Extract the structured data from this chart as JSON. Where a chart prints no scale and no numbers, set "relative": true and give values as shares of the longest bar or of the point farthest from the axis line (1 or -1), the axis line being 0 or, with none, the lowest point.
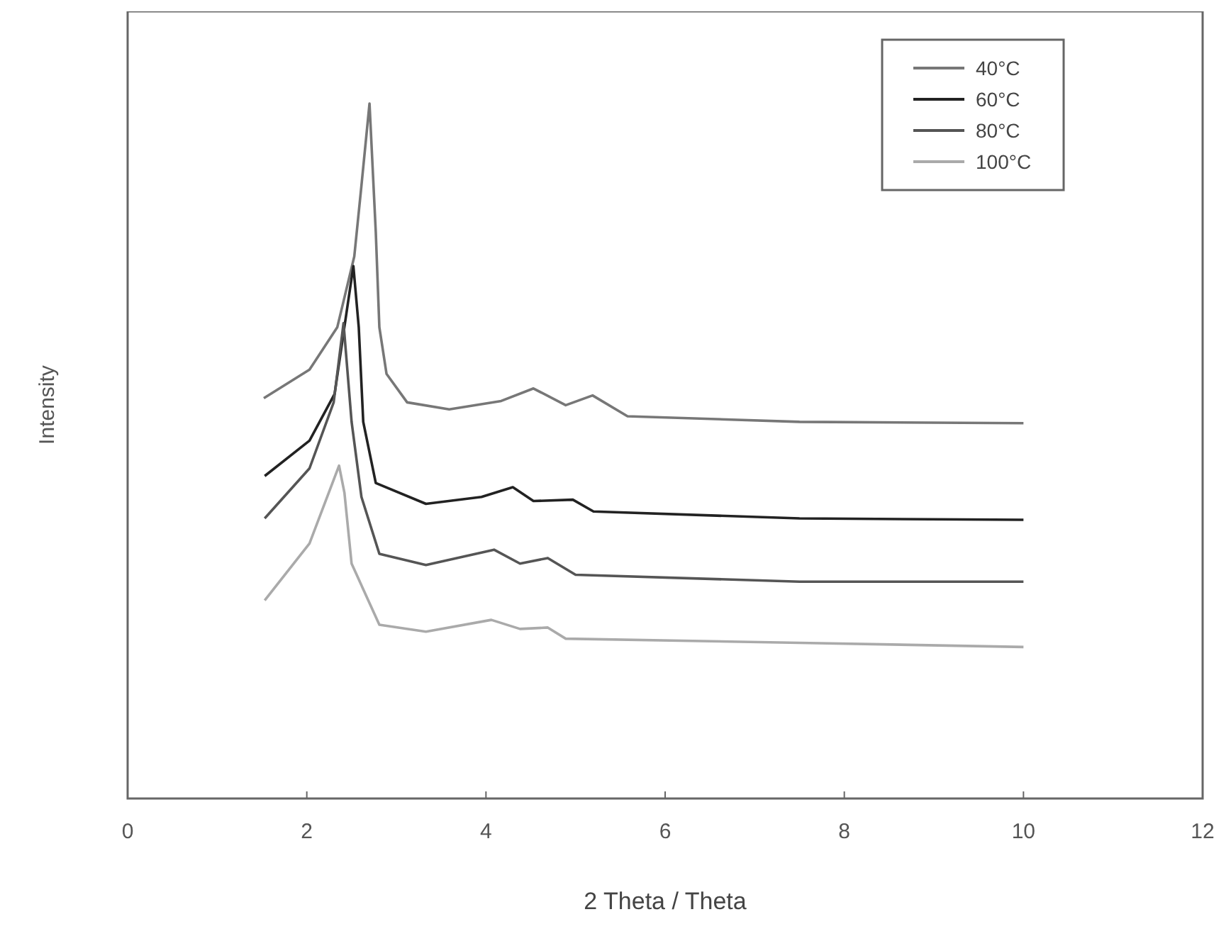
{
  "chart_data": {
    "type": "line",
    "xlabel": "2 Theta / Theta",
    "ylabel": "Intensity",
    "relative": true,
    "xlim": [
      0,
      12
    ],
    "xticks": [
      0,
      2,
      4,
      6,
      8,
      10,
      12
    ],
    "tick_labels": "x",
    "legend": "top right",
    "grid": false,
    "marker": "none",
    "line_style": "solid",
    "series": [
      {
        "name": "40°C",
        "color": "#777777",
        "x": [
          1.52,
          2.03,
          2.34,
          2.53,
          2.61,
          2.7,
          2.77,
          2.81,
          2.89,
          3.12,
          3.59,
          4.17,
          4.53,
          4.89,
          5.19,
          5.58,
          7.5,
          10
        ],
        "values": [
          0.576,
          0.617,
          0.678,
          0.78,
          0.882,
          1,
          0.815,
          0.678,
          0.611,
          0.57,
          0.56,
          0.572,
          0.59,
          0.566,
          0.58,
          0.55,
          0.542,
          0.54
        ]
      },
      {
        "name": "60°C",
        "color": "#222222",
        "x": [
          1.53,
          2.03,
          2.31,
          2.45,
          2.52,
          2.58,
          2.63,
          2.77,
          3.33,
          3.95,
          4.3,
          4.53,
          4.97,
          5.2,
          7.5,
          10
        ],
        "values": [
          0.464,
          0.515,
          0.582,
          0.705,
          0.766,
          0.678,
          0.542,
          0.454,
          0.424,
          0.434,
          0.448,
          0.428,
          0.43,
          0.413,
          0.403,
          0.401
        ]
      },
      {
        "name": "80°C",
        "color": "#555555",
        "x": [
          1.53,
          2.03,
          2.3,
          2.41,
          2.5,
          2.61,
          2.81,
          3.33,
          4.09,
          4.38,
          4.69,
          5.0,
          7.5,
          10
        ],
        "values": [
          0.403,
          0.475,
          0.57,
          0.684,
          0.542,
          0.434,
          0.352,
          0.336,
          0.358,
          0.338,
          0.346,
          0.322,
          0.312,
          0.312
        ]
      },
      {
        "name": "100°C",
        "color": "#aaaaaa",
        "x": [
          1.53,
          2.03,
          2.36,
          2.42,
          2.5,
          2.81,
          3.33,
          4.06,
          4.38,
          4.69,
          4.89,
          7.5,
          10
        ],
        "values": [
          0.285,
          0.367,
          0.479,
          0.44,
          0.338,
          0.25,
          0.24,
          0.257,
          0.244,
          0.246,
          0.23,
          0.224,
          0.218
        ]
      }
    ]
  }
}
